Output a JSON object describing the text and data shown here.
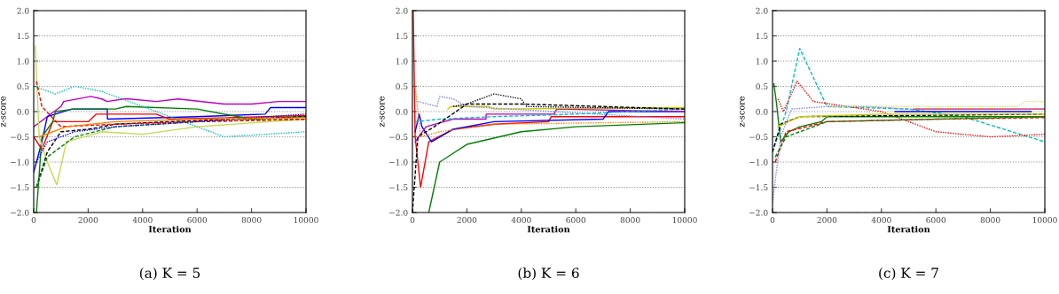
{
  "chart_data": [
    {
      "type": "line",
      "title": "(a) K = 5",
      "xlabel": "Iteration",
      "ylabel": "z-score",
      "xlim": [
        0,
        10000
      ],
      "ylim": [
        -2.0,
        2.0
      ],
      "xticks": [
        0,
        2000,
        4000,
        6000,
        8000,
        10000
      ],
      "yticks": [
        {
          "value": -2.0,
          "label": "−2.0"
        },
        {
          "value": -1.5,
          "label": "−1.5"
        },
        {
          "value": -1.0,
          "label": "−1.0"
        },
        {
          "value": -0.5,
          "label": "−0.5"
        },
        {
          "value": 0.0,
          "label": "0.0"
        },
        {
          "value": 0.5,
          "label": "0.5"
        },
        {
          "value": 1.0,
          "label": "1.0"
        },
        {
          "value": 1.5,
          "label": "1.5"
        },
        {
          "value": 2.0,
          "label": "2.0"
        }
      ],
      "grid": "y",
      "series": [
        {
          "color": "#bf00bf",
          "line_style": "solid",
          "x": [
            0,
            1000,
            1100,
            2100,
            2500,
            2700,
            3300,
            3500,
            4500,
            5300,
            7000,
            8000,
            9000,
            10000
          ],
          "values": [
            -0.3,
            0.1,
            0.2,
            0.3,
            0.25,
            0.2,
            0.25,
            0.25,
            0.2,
            0.25,
            0.15,
            0.15,
            0.2,
            0.2
          ]
        },
        {
          "color": "#0000ff",
          "line_style": "solid",
          "x": [
            0,
            300,
            500,
            1400,
            2700,
            2710,
            6000,
            8500,
            8700,
            10000
          ],
          "values": [
            -1.2,
            -0.6,
            -0.1,
            0.05,
            0.05,
            -0.15,
            -0.1,
            -0.05,
            0.08,
            0.08
          ]
        },
        {
          "color": "#ff0000",
          "line_style": "solid",
          "x": [
            0,
            300,
            700,
            1400,
            2000,
            2300,
            4500,
            5000,
            10000
          ],
          "values": [
            -0.5,
            -0.75,
            -0.2,
            -0.2,
            -0.2,
            -0.05,
            -0.05,
            -0.15,
            -0.08
          ]
        },
        {
          "color": "#008000",
          "line_style": "solid",
          "x": [
            100,
            300,
            700,
            800,
            1500,
            3000,
            3400,
            6000,
            8000,
            10000
          ],
          "values": [
            -2.0,
            -0.5,
            -0.2,
            0.0,
            0.05,
            0.05,
            0.1,
            0.05,
            -0.15,
            -0.1
          ]
        },
        {
          "color": "#c8d850",
          "line_style": "solid",
          "x": [
            60,
            200,
            500,
            850,
            1200,
            2500,
            4000,
            6000,
            10000
          ],
          "values": [
            1.3,
            -0.5,
            -1.0,
            -1.45,
            -0.6,
            -0.4,
            -0.45,
            -0.3,
            -0.15
          ]
        },
        {
          "color": "#00bfbf",
          "line_style": "dotted",
          "x": [
            0,
            800,
            1500,
            2500,
            4000,
            6000,
            7000,
            10000
          ],
          "values": [
            0.5,
            0.35,
            0.5,
            0.4,
            0.1,
            -0.3,
            -0.5,
            -0.4
          ]
        },
        {
          "color": "#000000",
          "line_style": "dashed",
          "x": [
            100,
            500,
            1000,
            2000,
            3000,
            5000,
            10000
          ],
          "values": [
            -1.5,
            -0.8,
            -0.4,
            -0.35,
            -0.25,
            -0.2,
            -0.1
          ]
        },
        {
          "color": "#008000",
          "line_style": "dashed",
          "x": [
            100,
            500,
            1500,
            3000,
            6000,
            10000
          ],
          "values": [
            -1.5,
            -0.9,
            -0.5,
            -0.3,
            -0.2,
            -0.15
          ]
        },
        {
          "color": "#ff0000",
          "line_style": "dashed",
          "x": [
            100,
            300,
            1000,
            3000,
            6000,
            10000
          ],
          "values": [
            0.6,
            0.1,
            -0.3,
            -0.25,
            -0.2,
            -0.15
          ]
        },
        {
          "color": "#0000ff",
          "line_style": "dotted",
          "x": [
            100,
            500,
            1500,
            3000,
            6000,
            10000
          ],
          "values": [
            -1.0,
            -0.6,
            -0.4,
            -0.3,
            -0.2,
            -0.05
          ]
        },
        {
          "color": "#ff8000",
          "line_style": "solid",
          "x": [
            200,
            1200,
            3000,
            6000,
            10000
          ],
          "values": [
            -0.5,
            -0.3,
            -0.2,
            -0.15,
            -0.12
          ]
        }
      ]
    },
    {
      "type": "line",
      "title": "(b) K = 6",
      "xlabel": "Iteration",
      "ylabel": "z-score",
      "xlim": [
        0,
        10000
      ],
      "ylim": [
        -2.0,
        2.0
      ],
      "xticks": [
        0,
        2000,
        4000,
        6000,
        8000,
        10000
      ],
      "yticks": [
        {
          "value": -2.0,
          "label": "−2.0"
        },
        {
          "value": -1.5,
          "label": "−1.5"
        },
        {
          "value": -1.0,
          "label": "−1.0"
        },
        {
          "value": -0.5,
          "label": "−0.5"
        },
        {
          "value": 0.0,
          "label": "0.0"
        },
        {
          "value": 0.5,
          "label": "0.5"
        },
        {
          "value": 1.0,
          "label": "1.0"
        },
        {
          "value": 1.5,
          "label": "1.5"
        },
        {
          "value": 2.0,
          "label": "2.0"
        }
      ],
      "grid": "y",
      "series": [
        {
          "color": "#ff0000",
          "line_style": "solid",
          "x": [
            30,
            100,
            300,
            600,
            1500,
            3000,
            5000,
            5100,
            10000
          ],
          "values": [
            2.0,
            -0.5,
            -1.5,
            -0.6,
            -0.35,
            -0.25,
            -0.2,
            -0.1,
            -0.1
          ]
        },
        {
          "color": "#008000",
          "line_style": "solid",
          "x": [
            600,
            1000,
            2000,
            4000,
            6000,
            10000
          ],
          "values": [
            -2.0,
            -1.0,
            -0.65,
            -0.4,
            -0.3,
            -0.22
          ]
        },
        {
          "color": "#0000ff",
          "line_style": "solid",
          "x": [
            100,
            250,
            350,
            700,
            1500,
            3000,
            7000,
            7200,
            10000
          ],
          "values": [
            -0.4,
            -0.05,
            -0.3,
            -0.6,
            -0.35,
            -0.2,
            -0.15,
            0.0,
            0.0
          ]
        },
        {
          "color": "#bf00bf",
          "line_style": "solid",
          "x": [
            100,
            500,
            1500,
            2700,
            2710,
            5200,
            5300,
            10000
          ],
          "values": [
            -0.6,
            -0.3,
            -0.15,
            -0.15,
            -0.05,
            -0.05,
            0.05,
            0.0
          ]
        },
        {
          "color": "#c8c800",
          "line_style": "solid",
          "x": [
            1300,
            1400,
            2800,
            3000,
            10000
          ],
          "values": [
            0.05,
            0.1,
            0.1,
            0.05,
            0.08
          ]
        },
        {
          "color": "#000000",
          "line_style": "dotted",
          "x": [
            1500,
            2000,
            3000,
            4000,
            4200,
            10000
          ],
          "values": [
            0.1,
            0.15,
            0.35,
            0.25,
            0.1,
            0.05
          ]
        },
        {
          "color": "#8080ff",
          "line_style": "dotted",
          "x": [
            200,
            900,
            1000,
            1500,
            2000,
            10000
          ],
          "values": [
            0.2,
            0.1,
            0.3,
            0.25,
            0.1,
            -0.15
          ]
        },
        {
          "color": "#00bfbf",
          "line_style": "dashed",
          "x": [
            100,
            1000,
            3000,
            6000,
            10000
          ],
          "values": [
            -0.2,
            -0.15,
            -0.1,
            -0.05,
            0.05
          ]
        },
        {
          "color": "#000000",
          "line_style": "dashed",
          "x": [
            0,
            200,
            800,
            2000,
            4000,
            10000
          ],
          "values": [
            -2.0,
            -0.5,
            -0.3,
            0.15,
            0.15,
            0.05
          ]
        },
        {
          "color": "#ff8000",
          "line_style": "dotted",
          "x": [
            100,
            300,
            1000,
            3000,
            10000
          ],
          "values": [
            0.5,
            -0.5,
            -0.4,
            -0.25,
            -0.2
          ]
        }
      ]
    },
    {
      "type": "line",
      "title": "(c) K = 7",
      "xlabel": "Iteration",
      "ylabel": "z-score",
      "xlim": [
        0,
        10000
      ],
      "ylim": [
        -2.0,
        2.0
      ],
      "xticks": [
        0,
        2000,
        4000,
        6000,
        8000,
        10000
      ],
      "yticks": [
        {
          "value": -2.0,
          "label": "−2.0"
        },
        {
          "value": -1.5,
          "label": "−1.5"
        },
        {
          "value": -1.0,
          "label": "−1.0"
        },
        {
          "value": -0.5,
          "label": "−0.5"
        },
        {
          "value": 0.0,
          "label": "0.0"
        },
        {
          "value": 0.5,
          "label": "0.5"
        },
        {
          "value": 1.0,
          "label": "1.0"
        },
        {
          "value": 1.5,
          "label": "1.5"
        },
        {
          "value": 2.0,
          "label": "2.0"
        }
      ],
      "grid": "y",
      "series": [
        {
          "color": "#00bfbf",
          "line_style": "dashed",
          "x": [
            0,
            500,
            1000,
            2000,
            5000,
            7000,
            8500,
            10000
          ],
          "values": [
            -0.8,
            0.0,
            1.25,
            0.1,
            0.05,
            -0.1,
            -0.35,
            -0.6
          ]
        },
        {
          "color": "#ff0000",
          "line_style": "dotted",
          "x": [
            200,
            400,
            900,
            1500,
            4000,
            6000,
            8000,
            10000
          ],
          "values": [
            0.25,
            0.0,
            0.6,
            0.2,
            0.0,
            -0.4,
            -0.5,
            -0.45
          ]
        },
        {
          "color": "#008000",
          "line_style": "solid",
          "x": [
            50,
            150,
            300,
            600,
            1000,
            1800,
            2000,
            10000
          ],
          "values": [
            0.55,
            0.15,
            -0.6,
            -0.4,
            -0.3,
            -0.2,
            -0.1,
            -0.1
          ]
        },
        {
          "color": "#000000",
          "line_style": "dashed",
          "x": [
            0,
            300,
            1000,
            10000
          ],
          "values": [
            -0.8,
            -0.25,
            -0.1,
            -0.05
          ]
        },
        {
          "color": "#c8c800",
          "line_style": "solid",
          "x": [
            200,
            1000,
            4000,
            10000
          ],
          "values": [
            -0.3,
            -0.1,
            -0.05,
            -0.05
          ]
        },
        {
          "color": "#ff0000",
          "line_style": "solid",
          "x": [
            5200,
            10000
          ],
          "values": [
            0.05,
            0.05
          ]
        },
        {
          "color": "#0000ff",
          "line_style": "solid",
          "x": [
            4500,
            9500
          ],
          "values": [
            0.0,
            0.0
          ]
        },
        {
          "color": "#8080ff",
          "line_style": "dotted",
          "x": [
            0,
            300,
            700,
            2000,
            3500,
            5000,
            10000
          ],
          "values": [
            -1.8,
            -0.5,
            0.05,
            0.1,
            0.1,
            0.05,
            0.05
          ]
        },
        {
          "color": "#e0e060",
          "line_style": "dotted",
          "x": [
            2000,
            9000,
            9300,
            10000
          ],
          "values": [
            0.1,
            0.1,
            0.2,
            0.2
          ]
        },
        {
          "color": "#ff0000",
          "line_style": "dashed",
          "x": [
            100,
            500,
            2000,
            6000,
            10000
          ],
          "values": [
            -1.0,
            -0.4,
            -0.2,
            -0.15,
            -0.12
          ]
        },
        {
          "color": "#008000",
          "line_style": "dashed",
          "x": [
            100,
            500,
            2000,
            10000
          ],
          "values": [
            -0.9,
            -0.5,
            -0.2,
            -0.1
          ]
        }
      ]
    }
  ]
}
